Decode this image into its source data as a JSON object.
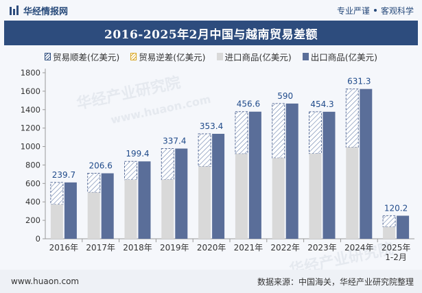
{
  "header": {
    "brand": "华经情报网",
    "tagline_left": "专业严谨",
    "tagline_right": "客观科学"
  },
  "footer": {
    "website": "www.huaon.com",
    "source": "数据来源：中国海关，华经产业研究院整理"
  },
  "watermarks": [
    "华经产业研究院",
    "www.huaon.com"
  ],
  "colors": {
    "title_bg": "#2d4c7d",
    "import": "#d9d9d9",
    "export": "#5a6e99",
    "surplus": "#2d4c7d",
    "deficit": "#d9a520"
  },
  "chart_data": {
    "type": "bar",
    "title": "2016-2025年2月中国与越南贸易差额",
    "categories": [
      "2016年",
      "2017年",
      "2018年",
      "2019年",
      "2020年",
      "2021年",
      "2022年",
      "2023年",
      "2024年",
      "2025年1-2月"
    ],
    "series": [
      {
        "name": "贸易顺差(亿美元)",
        "values": [
          239.7,
          206.6,
          199.4,
          337.4,
          353.4,
          456.6,
          590,
          454.3,
          631.3,
          120.2
        ]
      },
      {
        "name": "贸易逆差(亿美元)",
        "values": [
          0,
          0,
          0,
          0,
          0,
          0,
          0,
          0,
          0,
          0
        ]
      },
      {
        "name": "进口商品(亿美元)",
        "values": [
          372,
          503,
          640,
          641,
          785,
          921,
          876,
          923,
          993,
          130
        ]
      },
      {
        "name": "出口商品(亿美元)",
        "values": [
          611,
          710,
          839,
          978,
          1138,
          1378,
          1466,
          1377,
          1624,
          250
        ]
      }
    ],
    "data_labels": [
      "239.7",
      "206.6",
      "199.4",
      "337.4",
      "353.4",
      "456.6",
      "590",
      "454.3",
      "631.3",
      "120.2"
    ],
    "y_ticks": [
      0,
      200,
      400,
      600,
      800,
      1000,
      1200,
      1400,
      1600,
      1800
    ],
    "ylim": [
      0,
      1800
    ],
    "xlabel": "",
    "ylabel": "",
    "legend_position": "top-center",
    "grid": false
  }
}
